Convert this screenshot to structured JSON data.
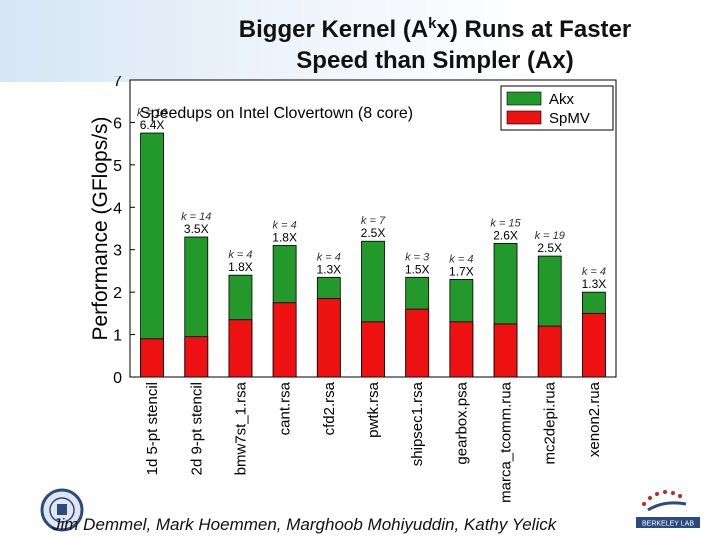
{
  "slide": {
    "title_line1_pre": "Bigger Kernel (A",
    "title_line1_sup": "k",
    "title_line1_post": "x) Runs at Faster",
    "title_line2": "Speed than Simpler (Ax)",
    "footer": "Jim Demmel, Mark Hoemmen, Marghoob Mohiyuddin, Kathy Yelick",
    "logo_right_text": "BERKELEY LAB"
  },
  "chart_data": {
    "type": "bar",
    "stacked": true,
    "title": "Speedups on Intel Clovertown (8 core)",
    "ylabel": "Performance (GFlops/s)",
    "xlabel": "",
    "ylim": [
      0,
      7
    ],
    "yticks": [
      0,
      1,
      2,
      3,
      4,
      5,
      6,
      7
    ],
    "legend_position": "top-right",
    "categories": [
      "1d 5-pt stencil",
      "2d 9-pt stencil",
      "bmw7st_1.rsa",
      "cant.rsa",
      "cfd2.rsa",
      "pwtk.rsa",
      "shipsec1.rsa",
      "gearbox.psa",
      "marca_tcomm.rua",
      "mc2depi.rua",
      "xenon2.rua"
    ],
    "series": [
      {
        "name": "SpMV",
        "color": "#ee1111",
        "values": [
          0.9,
          0.95,
          1.35,
          1.75,
          1.85,
          1.3,
          1.6,
          1.3,
          1.25,
          1.2,
          1.5
        ]
      },
      {
        "name": "Akx",
        "color": "#22992a",
        "totals": [
          5.75,
          3.3,
          2.4,
          3.1,
          2.35,
          3.2,
          2.35,
          2.3,
          3.15,
          2.85,
          2.0
        ]
      }
    ],
    "speedup_labels": [
      "6.4X",
      "3.5X",
      "1.8X",
      "1.8X",
      "1.3X",
      "2.5X",
      "1.5X",
      "1.7X",
      "2.6X",
      "2.5X",
      "1.3X"
    ],
    "k_labels": [
      "k = 16",
      "k = 14",
      "k = 4",
      "k = 4",
      "k = 4",
      "k = 7",
      "k = 3",
      "k = 4",
      "k = 15",
      "k = 19",
      "k = 4"
    ]
  }
}
